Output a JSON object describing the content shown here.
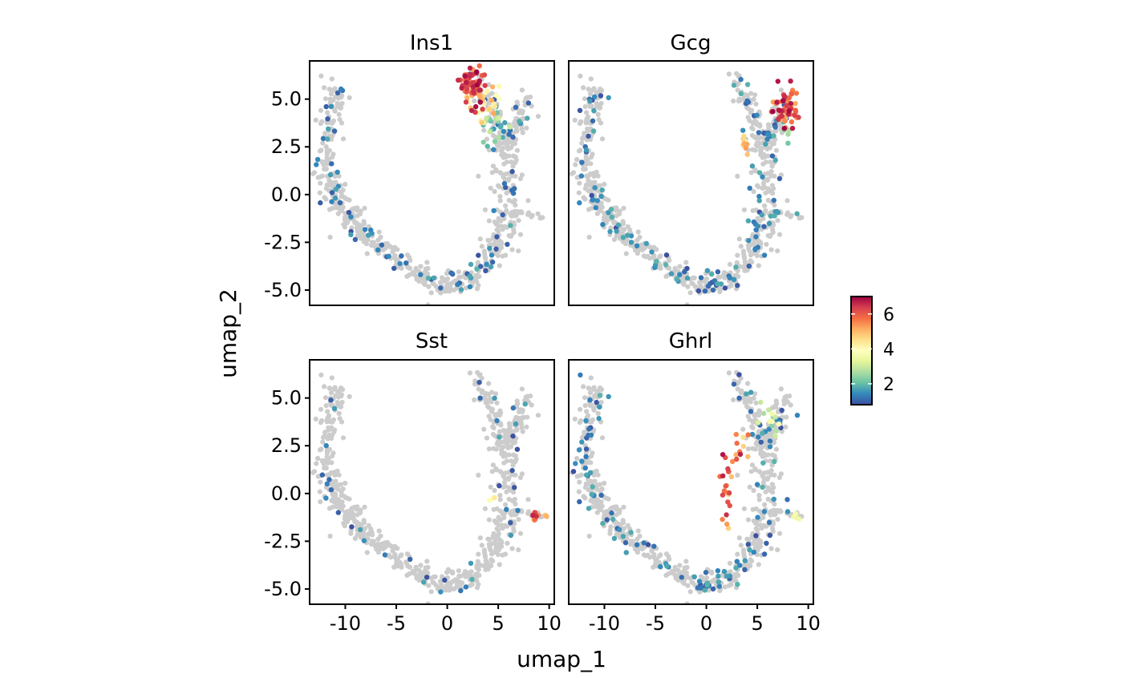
{
  "chart_data": {
    "type": "scatter",
    "title": "",
    "xlabel": "umap_1",
    "ylabel": "umap_2",
    "xlim": [
      -13.5,
      10.5
    ],
    "ylim": [
      -5.8,
      7.0
    ],
    "x_ticks": [
      -10,
      -5,
      0,
      5,
      10
    ],
    "x_tick_labels": [
      "-10",
      "-5",
      "0",
      "5",
      "10"
    ],
    "y_ticks": [
      -5.0,
      -2.5,
      0.0,
      2.5,
      5.0
    ],
    "y_tick_labels": [
      "-5.0",
      "-2.5",
      "0.0",
      "2.5",
      "5.0"
    ],
    "grid": false,
    "point_color_unexpressed": "#cccccc",
    "colorscale": {
      "name": "Spectral (reversed)",
      "min": 0.8,
      "max": 7.0,
      "ticks": [
        2,
        4,
        6
      ],
      "tick_labels": [
        "2",
        "4",
        "6"
      ],
      "stops": [
        "#3d4fa0",
        "#3288bd",
        "#66c2a5",
        "#abdda4",
        "#e6f598",
        "#ffffbf",
        "#fee08b",
        "#fdae61",
        "#f46d43",
        "#d53e4f",
        "#9e0142"
      ]
    },
    "legend_placement": "right",
    "panels": [
      {
        "name": "Ins1",
        "hotspots": [
          {
            "x": 2.6,
            "y": 5.7,
            "sx": 0.55,
            "sy": 0.6,
            "n": 60,
            "vmin": 5.0,
            "vmax": 7.0
          },
          {
            "x": 3.5,
            "y": 4.9,
            "sx": 0.8,
            "sy": 0.5,
            "n": 25,
            "vmin": 3.8,
            "vmax": 5.2
          },
          {
            "x": 4.5,
            "y": 3.7,
            "sx": 0.9,
            "sy": 0.5,
            "n": 22,
            "vmin": 1.6,
            "vmax": 3.6
          }
        ],
        "scatter_rate": 0.14
      },
      {
        "name": "Gcg",
        "hotspots": [
          {
            "x": 7.8,
            "y": 4.6,
            "sx": 0.7,
            "sy": 0.5,
            "n": 60,
            "vmin": 5.0,
            "vmax": 7.0
          },
          {
            "x": 3.8,
            "y": 2.6,
            "sx": 0.4,
            "sy": 0.4,
            "n": 8,
            "vmin": 4.0,
            "vmax": 5.5
          },
          {
            "x": 7.8,
            "y": 3.2,
            "sx": 0.5,
            "sy": 0.4,
            "n": 8,
            "vmin": 1.8,
            "vmax": 3.5
          }
        ],
        "scatter_rate": 0.16
      },
      {
        "name": "Sst",
        "hotspots": [
          {
            "x": 8.7,
            "y": -1.2,
            "sx": 0.4,
            "sy": 0.12,
            "n": 12,
            "vmin": 4.5,
            "vmax": 7.0
          },
          {
            "x": 4.5,
            "y": -0.6,
            "sx": 0.2,
            "sy": 0.2,
            "n": 3,
            "vmin": 3.6,
            "vmax": 4.4
          }
        ],
        "scatter_rate": 0.05
      },
      {
        "name": "Ghrl",
        "hotspots": [
          {
            "x": 2.0,
            "y": 0.5,
            "sx": 0.35,
            "sy": 1.1,
            "n": 22,
            "vmin": 4.5,
            "vmax": 7.0
          },
          {
            "x": 3.0,
            "y": 2.6,
            "sx": 0.6,
            "sy": 0.4,
            "n": 10,
            "vmin": 4.5,
            "vmax": 7.0
          },
          {
            "x": 6.0,
            "y": 3.8,
            "sx": 1.0,
            "sy": 0.5,
            "n": 14,
            "vmin": 1.8,
            "vmax": 3.8
          },
          {
            "x": 8.7,
            "y": -1.2,
            "sx": 0.3,
            "sy": 0.12,
            "n": 5,
            "vmin": 2.5,
            "vmax": 3.8
          }
        ],
        "scatter_rate": 0.16
      }
    ]
  }
}
